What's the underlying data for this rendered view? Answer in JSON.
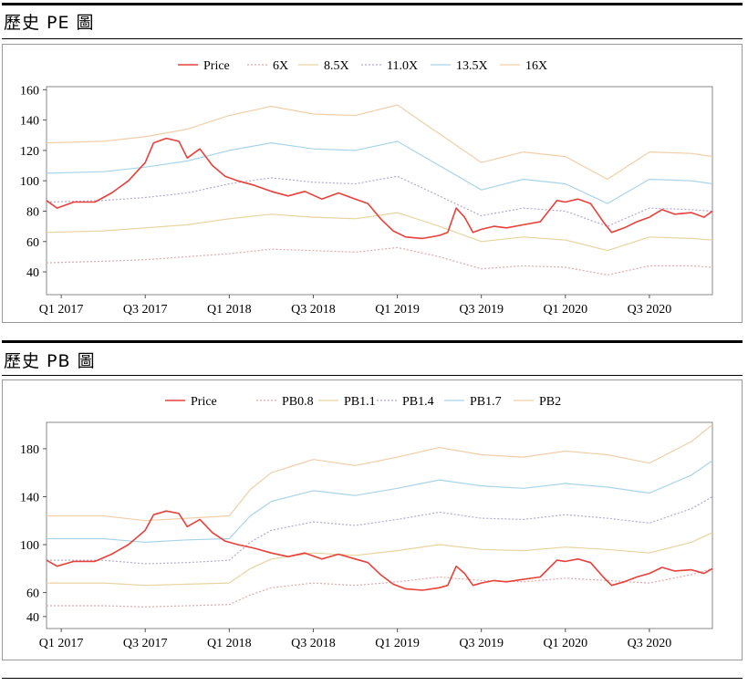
{
  "sections": [
    {
      "title": "歷史 PE 圖"
    },
    {
      "title": "歷史 PB 圖"
    }
  ],
  "chart_data": [
    {
      "type": "line",
      "title": "",
      "xlabel": "",
      "ylabel": "",
      "x_tick_labels": [
        "Q1 2017",
        "Q3 2017",
        "Q1 2018",
        "Q3 2018",
        "Q1 2019",
        "Q3 2019",
        "Q1 2020",
        "Q3 2020"
      ],
      "x_tick_positions": [
        0,
        2,
        4,
        6,
        8,
        10,
        12,
        14
      ],
      "x_range": [
        -0.35,
        15.5
      ],
      "ylim": [
        25,
        162
      ],
      "yticks": [
        40,
        60,
        80,
        100,
        120,
        140,
        160
      ],
      "grid": false,
      "legend_position": "top",
      "price_color": "#e8403a",
      "series": [
        {
          "name": "Price",
          "color": "#e8403a",
          "style": "solid",
          "x": [
            -0.35,
            -0.1,
            0.3,
            0.8,
            1.2,
            1.6,
            2.0,
            2.2,
            2.5,
            2.8,
            3.0,
            3.3,
            3.6,
            3.9,
            4.2,
            4.6,
            5.0,
            5.4,
            5.8,
            6.2,
            6.6,
            7.0,
            7.3,
            7.6,
            7.9,
            8.2,
            8.6,
            9.0,
            9.2,
            9.4,
            9.6,
            9.8,
            10.0,
            10.3,
            10.6,
            11.0,
            11.4,
            11.8,
            12.0,
            12.3,
            12.6,
            12.9,
            13.1,
            13.4,
            13.7,
            14.0,
            14.3,
            14.6,
            15.0,
            15.3,
            15.5
          ],
          "y": [
            87,
            82,
            86,
            86,
            92,
            100,
            112,
            125,
            128,
            126,
            115,
            121,
            110,
            103,
            100,
            97,
            93,
            90,
            93,
            88,
            92,
            88,
            85,
            75,
            67,
            63,
            62,
            64,
            66,
            82,
            76,
            66,
            68,
            70,
            69,
            71,
            73,
            87,
            86,
            88,
            85,
            73,
            66,
            69,
            73,
            76,
            81,
            78,
            79,
            76,
            80
          ]
        },
        {
          "name": "6X",
          "color": "#e3a8a8",
          "style": "dotted",
          "x": [
            -0.35,
            1.0,
            2.0,
            3.0,
            4.0,
            5.0,
            6.0,
            7.0,
            8.0,
            9.0,
            10.0,
            11.0,
            12.0,
            13.0,
            14.0,
            15.0,
            15.5
          ],
          "y": [
            46,
            47,
            48,
            50,
            52,
            55,
            54,
            53,
            56,
            50,
            42,
            44,
            43,
            38,
            44,
            44,
            43
          ]
        },
        {
          "name": "8.5X",
          "color": "#e8d4a0",
          "style": "solid",
          "x": [
            -0.35,
            1.0,
            2.0,
            3.0,
            4.0,
            5.0,
            6.0,
            7.0,
            8.0,
            9.0,
            10.0,
            11.0,
            12.0,
            13.0,
            14.0,
            15.0,
            15.5
          ],
          "y": [
            66,
            67,
            69,
            71,
            75,
            78,
            76,
            75,
            79,
            70,
            60,
            63,
            61,
            54,
            63,
            62,
            61
          ]
        },
        {
          "name": "11.0X",
          "color": "#b5a8d4",
          "style": "dotted",
          "x": [
            -0.35,
            1.0,
            2.0,
            3.0,
            4.0,
            5.0,
            6.0,
            7.0,
            8.0,
            9.0,
            10.0,
            11.0,
            12.0,
            13.0,
            14.0,
            15.0,
            15.5
          ],
          "y": [
            86,
            87,
            89,
            92,
            98,
            102,
            99,
            98,
            103,
            90,
            77,
            82,
            80,
            70,
            82,
            81,
            80
          ]
        },
        {
          "name": "13.5X",
          "color": "#a8d4ea",
          "style": "solid",
          "x": [
            -0.35,
            1.0,
            2.0,
            3.0,
            4.0,
            5.0,
            6.0,
            7.0,
            8.0,
            9.0,
            10.0,
            11.0,
            12.0,
            13.0,
            14.0,
            15.0,
            15.5
          ],
          "y": [
            105,
            106,
            109,
            113,
            120,
            125,
            121,
            120,
            126,
            110,
            94,
            101,
            98,
            85,
            101,
            100,
            98
          ]
        },
        {
          "name": "16X",
          "color": "#f0cfa8",
          "style": "solid",
          "x": [
            -0.35,
            1.0,
            2.0,
            3.0,
            4.0,
            5.0,
            6.0,
            7.0,
            8.0,
            9.0,
            10.0,
            11.0,
            12.0,
            13.0,
            14.0,
            15.0,
            15.5
          ],
          "y": [
            125,
            126,
            129,
            134,
            143,
            149,
            144,
            143,
            150,
            131,
            112,
            119,
            116,
            101,
            119,
            118,
            116
          ]
        }
      ]
    },
    {
      "type": "line",
      "title": "",
      "xlabel": "",
      "ylabel": "",
      "x_tick_labels": [
        "Q1 2017",
        "Q3 2017",
        "Q1 2018",
        "Q3 2018",
        "Q1 2019",
        "Q3 2019",
        "Q1 2020",
        "Q3 2020"
      ],
      "x_tick_positions": [
        0,
        2,
        4,
        6,
        8,
        10,
        12,
        14
      ],
      "x_range": [
        -0.35,
        15.5
      ],
      "ylim": [
        30,
        202
      ],
      "yticks": [
        40,
        60,
        100,
        140,
        180
      ],
      "grid": false,
      "legend_position": "top",
      "price_color": "#e8403a",
      "series": [
        {
          "name": "Price",
          "color": "#e8403a",
          "style": "solid",
          "x": [
            -0.35,
            -0.1,
            0.3,
            0.8,
            1.2,
            1.6,
            2.0,
            2.2,
            2.5,
            2.8,
            3.0,
            3.3,
            3.6,
            3.9,
            4.2,
            4.6,
            5.0,
            5.4,
            5.8,
            6.2,
            6.6,
            7.0,
            7.3,
            7.6,
            7.9,
            8.2,
            8.6,
            9.0,
            9.2,
            9.4,
            9.6,
            9.8,
            10.0,
            10.3,
            10.6,
            11.0,
            11.4,
            11.8,
            12.0,
            12.3,
            12.6,
            12.9,
            13.1,
            13.4,
            13.7,
            14.0,
            14.3,
            14.6,
            15.0,
            15.3,
            15.5
          ],
          "y": [
            87,
            82,
            86,
            86,
            92,
            100,
            112,
            125,
            128,
            126,
            115,
            121,
            110,
            103,
            100,
            97,
            93,
            90,
            93,
            88,
            92,
            88,
            85,
            75,
            67,
            63,
            62,
            64,
            66,
            82,
            76,
            66,
            68,
            70,
            69,
            71,
            73,
            87,
            86,
            88,
            85,
            73,
            66,
            69,
            73,
            76,
            81,
            78,
            79,
            76,
            80
          ]
        },
        {
          "name": "PB0.8",
          "color": "#e3a8a8",
          "style": "dotted",
          "x": [
            -0.35,
            1.0,
            2.0,
            3.0,
            4.0,
            4.5,
            5.0,
            6.0,
            7.0,
            8.0,
            9.0,
            10.0,
            11.0,
            12.0,
            13.0,
            14.0,
            15.0,
            15.5
          ],
          "y": [
            49,
            49,
            48,
            49,
            50,
            58,
            64,
            68,
            66,
            69,
            73,
            70,
            69,
            72,
            70,
            68,
            75,
            80
          ]
        },
        {
          "name": "PB1.1",
          "color": "#e8d4a0",
          "style": "solid",
          "x": [
            -0.35,
            1.0,
            2.0,
            3.0,
            4.0,
            4.5,
            5.0,
            6.0,
            7.0,
            8.0,
            9.0,
            10.0,
            11.0,
            12.0,
            13.0,
            14.0,
            15.0,
            15.5
          ],
          "y": [
            68,
            68,
            66,
            67,
            68,
            80,
            88,
            93,
            91,
            95,
            100,
            96,
            95,
            98,
            96,
            93,
            102,
            110
          ]
        },
        {
          "name": "PB1.4",
          "color": "#b5a8d4",
          "style": "dotted",
          "x": [
            -0.35,
            1.0,
            2.0,
            3.0,
            4.0,
            4.5,
            5.0,
            6.0,
            7.0,
            8.0,
            9.0,
            10.0,
            11.0,
            12.0,
            13.0,
            14.0,
            15.0,
            15.5
          ],
          "y": [
            87,
            87,
            84,
            85,
            87,
            102,
            112,
            119,
            116,
            121,
            127,
            122,
            121,
            125,
            122,
            118,
            130,
            140
          ]
        },
        {
          "name": "PB1.7",
          "color": "#a8d4ea",
          "style": "solid",
          "x": [
            -0.35,
            1.0,
            2.0,
            3.0,
            4.0,
            4.5,
            5.0,
            6.0,
            7.0,
            8.0,
            9.0,
            10.0,
            11.0,
            12.0,
            13.0,
            14.0,
            15.0,
            15.5
          ],
          "y": [
            105,
            105,
            102,
            104,
            105,
            124,
            136,
            145,
            141,
            147,
            154,
            149,
            147,
            151,
            148,
            143,
            158,
            170
          ]
        },
        {
          "name": "PB2",
          "color": "#f0cfa8",
          "style": "solid",
          "x": [
            -0.35,
            1.0,
            2.0,
            3.0,
            4.0,
            4.5,
            5.0,
            6.0,
            7.0,
            8.0,
            9.0,
            10.0,
            11.0,
            12.0,
            13.0,
            14.0,
            15.0,
            15.5
          ],
          "y": [
            124,
            124,
            120,
            122,
            124,
            146,
            160,
            171,
            166,
            173,
            181,
            175,
            173,
            178,
            175,
            168,
            186,
            200
          ]
        }
      ]
    }
  ]
}
